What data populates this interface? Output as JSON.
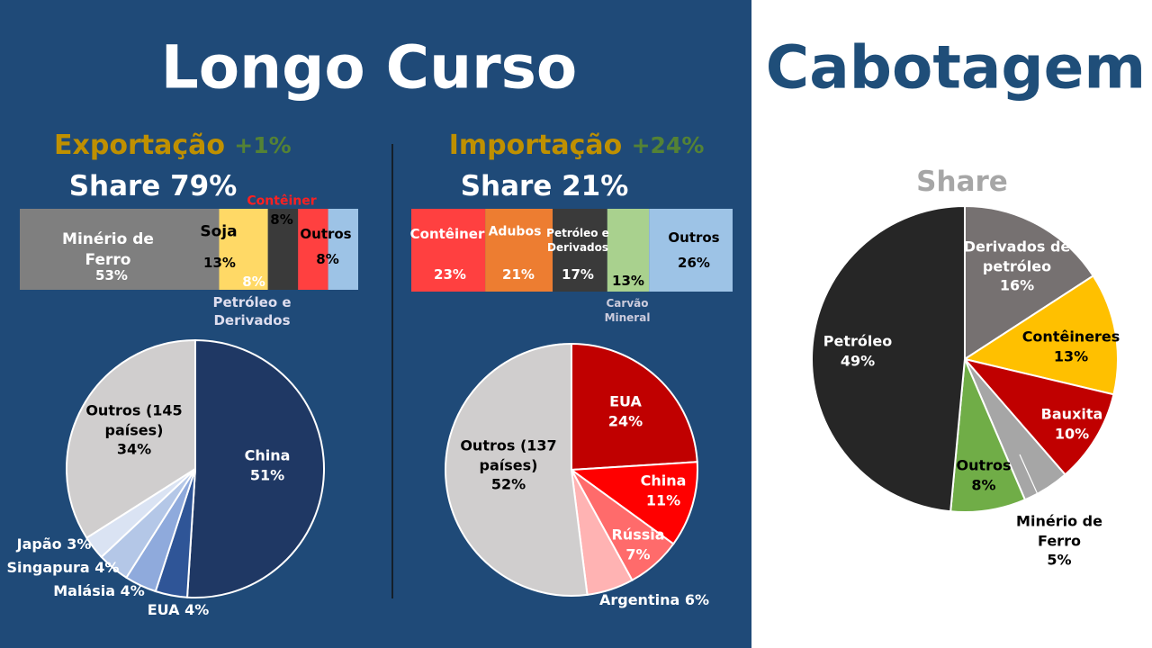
{
  "title_left": "Longo Curso",
  "title_right": "Cabotagem",
  "chart_data": [
    {
      "type": "bar",
      "orientation": "horizontal",
      "stacked": true,
      "title": "Exportação",
      "change": "+1%",
      "subtitle": "Share 79%",
      "categories": [
        "Minério de Ferro",
        "Soja",
        "Petróleo e Derivados",
        "Contêiner",
        "Outros"
      ],
      "values": [
        53,
        13,
        8,
        8,
        8
      ],
      "value_labels": [
        "53%",
        "13%",
        "8%",
        "8%",
        "8%"
      ],
      "colors": [
        "#7f7f7f",
        "#ffd966",
        "#3a3a3a",
        "#ff4040",
        "#9dc3e6"
      ]
    },
    {
      "type": "pie",
      "categories": [
        "China",
        "EUA",
        "Malásia",
        "Singapura",
        "Japão",
        "Outros (145 países)"
      ],
      "values": [
        51,
        4,
        4,
        4,
        3,
        34
      ],
      "value_labels": [
        "51%",
        "4%",
        "4%",
        "4%",
        "3%",
        "34%"
      ],
      "colors": [
        "#1f3864",
        "#2f5597",
        "#8faadc",
        "#b4c7e7",
        "#dae3f3",
        "#d0cece"
      ]
    },
    {
      "type": "bar",
      "orientation": "horizontal",
      "stacked": true,
      "title": "Importação",
      "change": "+24%",
      "subtitle": "Share 21%",
      "categories": [
        "Contêiner",
        "Adubos",
        "Petróleo e Derivados",
        "Carvão Mineral",
        "Outros"
      ],
      "values": [
        23,
        21,
        17,
        13,
        26
      ],
      "value_labels": [
        "23%",
        "21%",
        "17%",
        "13%",
        "26%"
      ],
      "colors": [
        "#ff4040",
        "#ed7d31",
        "#3a3a3a",
        "#a9d18e",
        "#9dc3e6"
      ]
    },
    {
      "type": "pie",
      "categories": [
        "EUA",
        "China",
        "Rússia",
        "Argentina",
        "Outros (137 países)"
      ],
      "values": [
        24,
        11,
        7,
        6,
        52
      ],
      "value_labels": [
        "24%",
        "11%",
        "7%",
        "6%",
        "52%"
      ],
      "colors": [
        "#c00000",
        "#ff0000",
        "#ff6b6b",
        "#ffb3b3",
        "#d0cece"
      ]
    },
    {
      "type": "pie",
      "title": "Share",
      "categories": [
        "Derivados de petróleo",
        "Contêineres",
        "Bauxita",
        "Minério de Ferro",
        "Outros",
        "Petróleo"
      ],
      "values": [
        16,
        13,
        10,
        5,
        8,
        49
      ],
      "value_labels": [
        "16%",
        "13%",
        "10%",
        "5%",
        "8%",
        "49%"
      ],
      "colors": [
        "#767171",
        "#ffc000",
        "#c00000",
        "#a6a6a6",
        "#70ad47",
        "#262626"
      ]
    }
  ]
}
